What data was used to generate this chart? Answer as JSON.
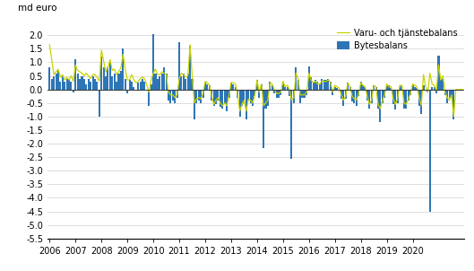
{
  "title": "",
  "ylabel": "md euro",
  "ylim": [
    -5.5,
    2.5
  ],
  "yticks": [
    2.0,
    1.5,
    1.0,
    0.5,
    0.0,
    -0.5,
    -1.0,
    -1.5,
    -2.0,
    -2.5,
    -3.0,
    -3.5,
    -4.0,
    -4.5,
    -5.0,
    -5.5
  ],
  "bar_color": "#2e75b6",
  "line_color": "#c8d400",
  "legend_bar": "Bytesbalans",
  "legend_line": "Varu- och tjänstebalans",
  "bar_width": 0.85,
  "start_year": 2006,
  "end_year": 2020,
  "bytesbalans": [
    0.8,
    0.4,
    0.5,
    0.6,
    0.7,
    0.3,
    0.5,
    0.3,
    0.4,
    0.4,
    0.3,
    -0.1,
    1.1,
    0.6,
    0.4,
    0.5,
    0.4,
    0.2,
    0.4,
    0.3,
    0.5,
    0.4,
    0.3,
    -1.0,
    1.2,
    0.8,
    0.5,
    0.8,
    1.0,
    0.5,
    0.6,
    0.3,
    0.6,
    0.7,
    1.5,
    0.4,
    -0.15,
    0.35,
    0.3,
    0.1,
    0.0,
    0.25,
    0.3,
    0.4,
    0.3,
    -0.05,
    -0.6,
    0.2,
    2.05,
    0.6,
    0.4,
    0.5,
    0.6,
    0.8,
    0.6,
    -0.4,
    -0.5,
    -0.4,
    -0.5,
    -0.3,
    1.75,
    0.5,
    0.6,
    0.4,
    0.6,
    1.6,
    0.4,
    -1.1,
    -0.5,
    -0.4,
    -0.5,
    -0.3,
    0.25,
    0.2,
    0.15,
    -0.4,
    -0.6,
    -0.55,
    -0.4,
    -0.65,
    -0.7,
    -0.55,
    -0.8,
    -0.3,
    0.25,
    0.2,
    0.1,
    -0.3,
    -1.0,
    -0.6,
    -0.5,
    -1.1,
    -0.4,
    -0.5,
    -0.6,
    -0.25,
    0.35,
    -0.3,
    0.2,
    -2.15,
    -0.7,
    -0.6,
    0.3,
    0.15,
    -0.15,
    -0.3,
    -0.3,
    -0.2,
    0.3,
    0.1,
    0.1,
    -0.25,
    -2.55,
    -0.5,
    0.8,
    0.35,
    -0.5,
    -0.3,
    -0.3,
    -0.2,
    0.85,
    0.45,
    0.3,
    0.35,
    0.3,
    0.2,
    0.4,
    0.35,
    0.35,
    0.4,
    0.3,
    -0.2,
    0.1,
    0.05,
    0.0,
    -0.35,
    -0.6,
    -0.35,
    0.25,
    0.1,
    -0.45,
    -0.5,
    -0.6,
    -0.25,
    0.3,
    0.15,
    0.1,
    -0.4,
    -0.7,
    -0.5,
    0.15,
    0.1,
    -0.7,
    -1.2,
    -0.5,
    -0.3,
    0.2,
    0.15,
    0.05,
    -0.55,
    -0.75,
    -0.5,
    0.1,
    0.15,
    -0.7,
    -0.7,
    -0.4,
    -0.2,
    0.15,
    0.1,
    0.05,
    -0.6,
    -0.9,
    0.15,
    -0.05,
    -0.1,
    -4.5,
    0.1,
    0.1,
    -0.15,
    1.25,
    0.35,
    0.4,
    -0.2,
    -0.5,
    -0.3,
    -0.3,
    -1.1,
    0.0,
    0.0,
    0.0,
    0.0
  ],
  "varu_tjanste": [
    1.65,
    1.1,
    0.55,
    0.65,
    0.75,
    0.45,
    0.55,
    0.35,
    0.45,
    0.35,
    0.5,
    0.3,
    0.9,
    0.7,
    0.65,
    0.6,
    0.5,
    0.6,
    0.5,
    0.4,
    0.55,
    0.55,
    0.45,
    0.3,
    1.45,
    1.05,
    0.65,
    0.8,
    1.1,
    0.7,
    0.75,
    0.55,
    0.65,
    0.8,
    1.3,
    0.75,
    0.35,
    0.35,
    0.55,
    0.35,
    0.25,
    0.3,
    0.4,
    0.45,
    0.4,
    0.15,
    -0.1,
    0.35,
    0.6,
    0.75,
    0.55,
    0.55,
    0.65,
    0.6,
    0.55,
    -0.1,
    -0.2,
    -0.2,
    -0.3,
    -0.2,
    0.4,
    0.6,
    0.55,
    0.45,
    0.5,
    1.65,
    0.5,
    -0.5,
    -0.35,
    -0.3,
    -0.35,
    -0.15,
    0.3,
    0.25,
    0.15,
    -0.25,
    -0.55,
    -0.4,
    -0.3,
    -0.5,
    -0.6,
    -0.5,
    -0.6,
    -0.25,
    0.25,
    0.25,
    0.2,
    -0.2,
    -0.8,
    -0.55,
    -0.4,
    -0.8,
    -0.35,
    -0.4,
    -0.5,
    -0.2,
    0.35,
    -0.1,
    0.2,
    -0.6,
    -0.5,
    -0.4,
    0.25,
    0.2,
    0.0,
    -0.15,
    -0.15,
    -0.1,
    0.3,
    0.1,
    0.15,
    0.0,
    -0.4,
    -0.3,
    0.6,
    0.4,
    -0.2,
    -0.2,
    -0.2,
    -0.1,
    0.6,
    0.35,
    0.25,
    0.3,
    0.2,
    0.2,
    0.3,
    0.3,
    0.3,
    0.35,
    0.25,
    -0.1,
    0.15,
    0.1,
    0.05,
    -0.2,
    -0.4,
    -0.25,
    0.25,
    0.1,
    -0.25,
    -0.35,
    -0.4,
    -0.15,
    0.25,
    0.15,
    0.1,
    -0.25,
    -0.55,
    -0.4,
    0.15,
    0.1,
    -0.55,
    -0.7,
    -0.4,
    -0.2,
    0.2,
    0.1,
    0.1,
    -0.35,
    -0.55,
    -0.35,
    0.15,
    0.15,
    -0.5,
    -0.55,
    -0.35,
    -0.15,
    0.2,
    0.15,
    0.1,
    -0.3,
    -0.6,
    0.55,
    0.1,
    -0.1,
    0.6,
    0.2,
    0.15,
    -0.05,
    0.9,
    0.35,
    0.5,
    -0.1,
    -0.3,
    -0.4,
    -0.2,
    -1.0,
    0.0,
    0.0,
    0.0,
    0.0
  ]
}
